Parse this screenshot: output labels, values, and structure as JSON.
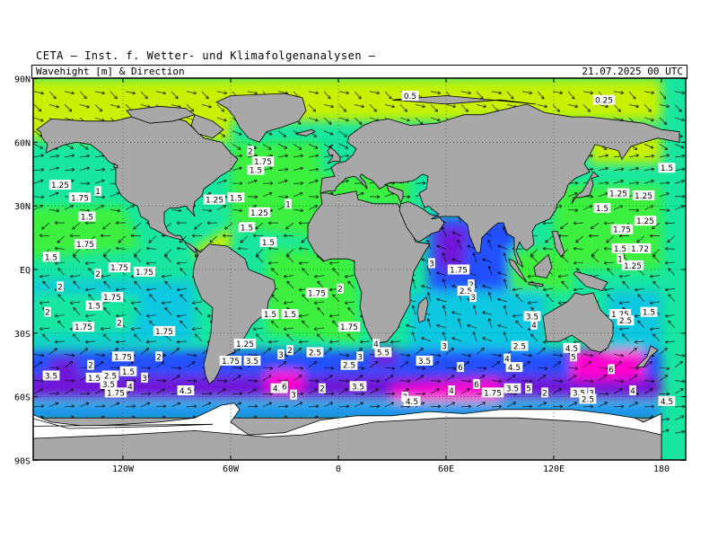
{
  "credit": "CETA — Inst. f. Wetter- und Klimafolgenanalysen —",
  "title_left": "Wavehight [m] & Direction",
  "title_right": "21.07.2025 00 UTC",
  "lat_labels": [
    "90N",
    "60N",
    "30N",
    "EQ",
    "30S",
    "60S",
    "90S"
  ],
  "lon_labels": [
    "120W",
    "60W",
    "0",
    "60E",
    "120E",
    "180"
  ],
  "colors": {
    "land": "#a8a8a8",
    "ice": "#ffffff",
    "calm": "#c8f000",
    "low": "#3cf040",
    "mid": "#18e6a0",
    "teal": "#10c8e0",
    "blue": "#2050ff",
    "purple": "#7018d8",
    "magenta": "#ff00d0"
  },
  "wave_labels": [
    {
      "t": "0.5",
      "lon": 40,
      "lat": 82
    },
    {
      "t": "0.25",
      "lon": 148,
      "lat": 80
    },
    {
      "t": "2",
      "lon": -49,
      "lat": 56
    },
    {
      "t": "1.75",
      "lon": -42,
      "lat": 51
    },
    {
      "t": "1.5",
      "lon": -46,
      "lat": 47
    },
    {
      "t": "1.25",
      "lon": -155,
      "lat": 40
    },
    {
      "t": "1.75",
      "lon": -144,
      "lat": 34
    },
    {
      "t": "1",
      "lon": -134,
      "lat": 37
    },
    {
      "t": "1.25",
      "lon": -69,
      "lat": 33
    },
    {
      "t": "1.5",
      "lon": -57,
      "lat": 34
    },
    {
      "t": "1.25",
      "lon": -44,
      "lat": 27
    },
    {
      "t": "1",
      "lon": -28,
      "lat": 31
    },
    {
      "t": "1.5",
      "lon": -140,
      "lat": 25
    },
    {
      "t": "1.5",
      "lon": -51,
      "lat": 20
    },
    {
      "t": "1.5",
      "lon": -39,
      "lat": 13
    },
    {
      "t": "1.75",
      "lon": -141,
      "lat": 12
    },
    {
      "t": "1.5",
      "lon": -160,
      "lat": 6
    },
    {
      "t": "1.75",
      "lon": -122,
      "lat": 1
    },
    {
      "t": "1.75",
      "lon": -108,
      "lat": -1
    },
    {
      "t": "2",
      "lon": -134,
      "lat": -2
    },
    {
      "t": "2",
      "lon": -155,
      "lat": -8
    },
    {
      "t": "1.75",
      "lon": -126,
      "lat": -13
    },
    {
      "t": "1.5",
      "lon": -136,
      "lat": -17
    },
    {
      "t": "2",
      "lon": -162,
      "lat": -20
    },
    {
      "t": "1.75",
      "lon": -142,
      "lat": -27
    },
    {
      "t": "2",
      "lon": -122,
      "lat": -25
    },
    {
      "t": "1.75",
      "lon": -97,
      "lat": -29
    },
    {
      "t": "1.5",
      "lon": -38,
      "lat": -21
    },
    {
      "t": "1.5",
      "lon": -27,
      "lat": -21
    },
    {
      "t": "1.75",
      "lon": -12,
      "lat": -11
    },
    {
      "t": "2",
      "lon": 1,
      "lat": -9
    },
    {
      "t": "1.75",
      "lon": 6,
      "lat": -27
    },
    {
      "t": "1.25",
      "lon": -52,
      "lat": -35
    },
    {
      "t": "1.75",
      "lon": -60,
      "lat": -43
    },
    {
      "t": "3.5",
      "lon": -48,
      "lat": -43
    },
    {
      "t": "3",
      "lon": -32,
      "lat": -40
    },
    {
      "t": "2",
      "lon": -27,
      "lat": -38
    },
    {
      "t": "2.5",
      "lon": -13,
      "lat": -39
    },
    {
      "t": "3",
      "lon": 12,
      "lat": -41
    },
    {
      "t": "2.5",
      "lon": 6,
      "lat": -45
    },
    {
      "t": "4",
      "lon": 21,
      "lat": -35
    },
    {
      "t": "5.5",
      "lon": 25,
      "lat": -39
    },
    {
      "t": "3",
      "lon": 59,
      "lat": -36
    },
    {
      "t": "3.5",
      "lon": 48,
      "lat": -43
    },
    {
      "t": "6",
      "lon": 68,
      "lat": -46
    },
    {
      "t": "2.5",
      "lon": 101,
      "lat": -36
    },
    {
      "t": "4",
      "lon": 94,
      "lat": -42
    },
    {
      "t": "4.5",
      "lon": 98,
      "lat": -46
    },
    {
      "t": "4.5",
      "lon": 130,
      "lat": -37
    },
    {
      "t": "5",
      "lon": 131,
      "lat": -41
    },
    {
      "t": "6",
      "lon": 152,
      "lat": -47
    },
    {
      "t": "1.75",
      "lon": 157,
      "lat": -21
    },
    {
      "t": "2.5",
      "lon": 160,
      "lat": -24
    },
    {
      "t": "1.5",
      "lon": 173,
      "lat": -20
    },
    {
      "t": "3",
      "lon": 52,
      "lat": 3
    },
    {
      "t": "1.75",
      "lon": 67,
      "lat": 0
    },
    {
      "t": "2",
      "lon": 74,
      "lat": -7
    },
    {
      "t": "2.5",
      "lon": 71,
      "lat": -10
    },
    {
      "t": "3",
      "lon": 75,
      "lat": -13
    },
    {
      "t": "3.5",
      "lon": 108,
      "lat": -22
    },
    {
      "t": "4",
      "lon": 109,
      "lat": -26
    },
    {
      "t": "1.25",
      "lon": 156,
      "lat": 36
    },
    {
      "t": "1.25",
      "lon": 170,
      "lat": 35
    },
    {
      "t": "1.5",
      "lon": 147,
      "lat": 29
    },
    {
      "t": "1.75",
      "lon": 158,
      "lat": 19
    },
    {
      "t": "1.25",
      "lon": 171,
      "lat": 23
    },
    {
      "t": "1.5",
      "lon": 157,
      "lat": 10
    },
    {
      "t": "1.72",
      "lon": 168,
      "lat": 10
    },
    {
      "t": "1",
      "lon": 157,
      "lat": 5
    },
    {
      "t": "1.25",
      "lon": 164,
      "lat": 2
    },
    {
      "t": "1.5",
      "lon": 183,
      "lat": 48
    },
    {
      "t": "3.5",
      "lon": -160,
      "lat": -50
    },
    {
      "t": "2",
      "lon": -138,
      "lat": -45
    },
    {
      "t": "1.75",
      "lon": -120,
      "lat": -41
    },
    {
      "t": "2",
      "lon": -100,
      "lat": -41
    },
    {
      "t": "1.5",
      "lon": -117,
      "lat": -48
    },
    {
      "t": "1.5",
      "lon": -136,
      "lat": -51
    },
    {
      "t": "2.5",
      "lon": -127,
      "lat": -50
    },
    {
      "t": "3",
      "lon": -108,
      "lat": -51
    },
    {
      "t": "3.5",
      "lon": -128,
      "lat": -54
    },
    {
      "t": "4",
      "lon": -116,
      "lat": -55
    },
    {
      "t": "1.75",
      "lon": -124,
      "lat": -58
    },
    {
      "t": "4.5",
      "lon": -85,
      "lat": -57
    },
    {
      "t": "4.5",
      "lon": -33,
      "lat": -56
    },
    {
      "t": "6",
      "lon": -30,
      "lat": -55
    },
    {
      "t": "3",
      "lon": -25,
      "lat": -59
    },
    {
      "t": "2",
      "lon": -9,
      "lat": -56
    },
    {
      "t": "3.5",
      "lon": 11,
      "lat": -55
    },
    {
      "t": "7",
      "lon": 37,
      "lat": -60
    },
    {
      "t": "4.5",
      "lon": 41,
      "lat": -62
    },
    {
      "t": "4",
      "lon": 63,
      "lat": -57
    },
    {
      "t": "6",
      "lon": 77,
      "lat": -54
    },
    {
      "t": "1.75",
      "lon": 86,
      "lat": -58
    },
    {
      "t": "3.5",
      "lon": 97,
      "lat": -56
    },
    {
      "t": "5",
      "lon": 106,
      "lat": -56
    },
    {
      "t": "2",
      "lon": 115,
      "lat": -58
    },
    {
      "t": "3.5",
      "lon": 134,
      "lat": -58
    },
    {
      "t": "3",
      "lon": 141,
      "lat": -58
    },
    {
      "t": "2.5",
      "lon": 139,
      "lat": -61
    },
    {
      "t": "4",
      "lon": 164,
      "lat": -57
    },
    {
      "t": "4.5",
      "lon": 183,
      "lat": -62
    }
  ]
}
